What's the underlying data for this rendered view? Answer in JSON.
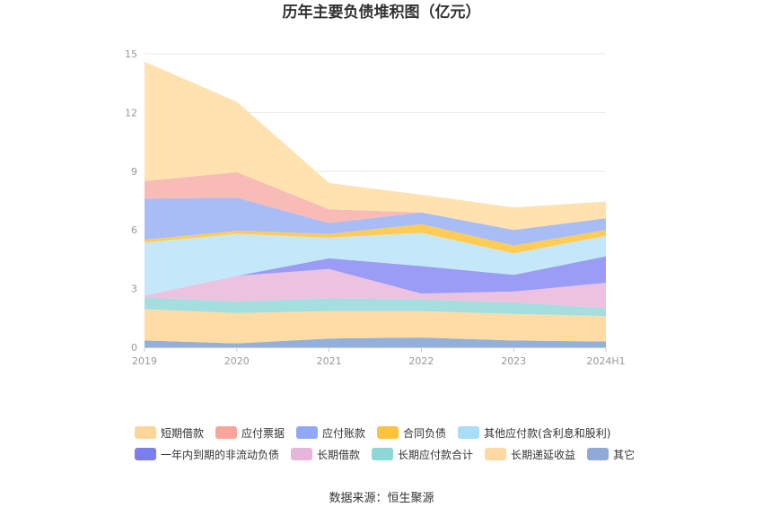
{
  "chart_data": {
    "type": "area",
    "stacked": true,
    "title": "历年主要负债堆积图（亿元）",
    "source": "数据来源：恒生聚源",
    "categories": [
      "2019",
      "2020",
      "2021",
      "2022",
      "2023",
      "2024H1"
    ],
    "yticks": [
      "0",
      "3",
      "6",
      "9",
      "12",
      "15"
    ],
    "ylim": [
      0,
      15
    ],
    "grid": true,
    "legend_position": "bottom",
    "series": [
      {
        "name": "其它",
        "color": "#93B0DD",
        "values": [
          0.35,
          0.2,
          0.45,
          0.5,
          0.35,
          0.3
        ]
      },
      {
        "name": "长期递延收益",
        "color": "#FFDBA6",
        "values": [
          1.6,
          1.55,
          1.4,
          1.35,
          1.35,
          1.3
        ]
      },
      {
        "name": "长期应付款合计",
        "color": "#A5DEDE",
        "values": [
          0.6,
          0.6,
          0.65,
          0.6,
          0.6,
          0.4
        ]
      },
      {
        "name": "长期借款",
        "color": "#EDC2E0",
        "values": [
          0.1,
          1.3,
          1.5,
          0.3,
          0.55,
          1.3
        ]
      },
      {
        "name": "一年内到期的非流动负债",
        "color": "#9A9CF5",
        "values": [
          0,
          0,
          0.55,
          1.4,
          0.85,
          1.35
        ]
      },
      {
        "name": "其他应付款(含利息和股利)",
        "color": "#C4E8FA",
        "values": [
          2.7,
          2.15,
          1.05,
          1.7,
          1.1,
          1.05
        ]
      },
      {
        "name": "合同负债",
        "color": "#FFCC55",
        "values": [
          0.15,
          0.15,
          0.2,
          0.45,
          0.4,
          0.3
        ]
      },
      {
        "name": "应付账款",
        "color": "#A8BDF5",
        "values": [
          2.1,
          1.7,
          0.55,
          0.6,
          0.8,
          0.6
        ]
      },
      {
        "name": "应付票据",
        "color": "#F9BBB5",
        "values": [
          0.9,
          1.3,
          0.7,
          0,
          0,
          0
        ]
      },
      {
        "name": "短期借款",
        "color": "#FFE2B0",
        "values": [
          6.1,
          3.6,
          1.35,
          0.9,
          1.15,
          0.85
        ]
      }
    ],
    "legend_rows": [
      [
        "短期借款",
        "应付票据",
        "应付账款",
        "合同负债",
        "其他应付款(含利息和股利)"
      ],
      [
        "一年内到期的非流动负债",
        "长期借款",
        "长期应付款合计",
        "长期递延收益",
        "其它"
      ]
    ],
    "legend_colors": {
      "短期借款": "#FFD699",
      "应付票据": "#F9A59B",
      "应付账款": "#8FA9F5",
      "合同负债": "#FFC23F",
      "其他应付款(含利息和股利)": "#A8DCF7",
      "一年内到期的非流动负债": "#7C7EF0",
      "长期借款": "#E7B5DA",
      "长期应付款合计": "#8DD7D6",
      "长期递延收益": "#FFD9A3",
      "其它": "#8FAAD9"
    }
  }
}
